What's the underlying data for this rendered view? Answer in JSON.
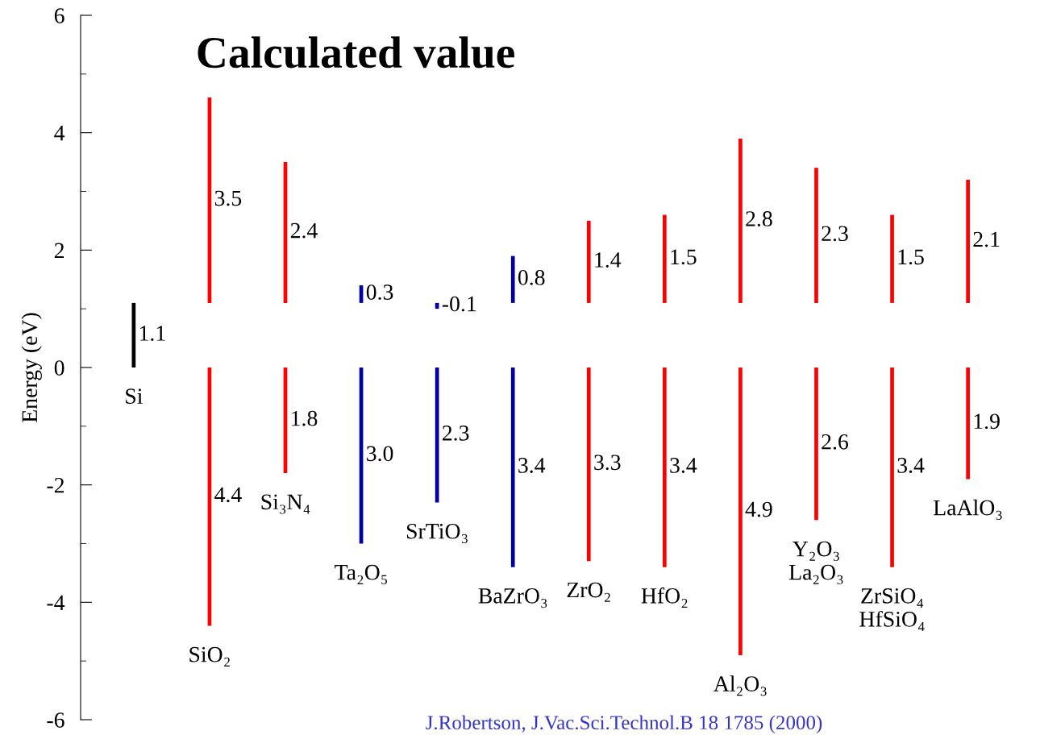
{
  "chart_data": {
    "type": "bar",
    "title": "Calculated value",
    "ylabel": "Energy (eV)",
    "categories": [
      "Si",
      "SiO₂",
      "Si₃N₄",
      "Ta₂O₅",
      "SrTiO₃",
      "BaZrO₃",
      "ZrO₂",
      "HfO₂",
      "Al₂O₃",
      "Y₂O₃\nLa₂O₃",
      "ZrSiO₄\nHfSiO₄",
      "LaAlO₃"
    ],
    "series": [
      {
        "base": [
          0,
          null,
          null,
          null,
          null,
          null,
          null,
          null,
          null,
          null,
          null,
          null
        ],
        "values": [
          1.1,
          null,
          null,
          null,
          null,
          null,
          null,
          null,
          null,
          null,
          null,
          null
        ],
        "colors": [
          "#000000",
          null,
          null,
          null,
          null,
          null,
          null,
          null,
          null,
          null,
          null,
          null
        ],
        "value_labels": [
          "1.1",
          null,
          null,
          null,
          null,
          null,
          null,
          null,
          null,
          null,
          null,
          null
        ]
      },
      {
        "base": [
          null,
          1.1,
          1.1,
          1.1,
          1.1,
          1.1,
          1.1,
          1.1,
          1.1,
          1.1,
          1.1,
          1.1
        ],
        "values": [
          null,
          3.5,
          2.4,
          0.3,
          -0.1,
          0.8,
          1.4,
          1.5,
          2.8,
          2.3,
          1.5,
          2.1
        ],
        "colors": [
          null,
          "#ff0000",
          "#ff0000",
          "#0000a0",
          "#0000a0",
          "#0000a0",
          "#ff0000",
          "#ff0000",
          "#ff0000",
          "#ff0000",
          "#ff0000",
          "#ff0000"
        ],
        "value_labels": [
          null,
          "3.5",
          "2.4",
          "0.3",
          "-0.1",
          "0.8",
          "1.4",
          "1.5",
          "2.8",
          "2.3",
          "1.5",
          "2.1"
        ]
      },
      {
        "base": [
          null,
          0,
          0,
          0,
          0,
          0,
          0,
          0,
          0,
          0,
          0,
          0
        ],
        "values": [
          null,
          -4.4,
          -1.8,
          -3.0,
          -2.3,
          -3.4,
          -3.3,
          -3.4,
          -4.9,
          -2.6,
          -3.4,
          -1.9
        ],
        "colors": [
          null,
          "#ff0000",
          "#ff0000",
          "#0000a0",
          "#0000a0",
          "#0000a0",
          "#ff0000",
          "#ff0000",
          "#ff0000",
          "#ff0000",
          "#ff0000",
          "#ff0000"
        ],
        "value_labels": [
          null,
          "4.4",
          "1.8",
          "3.0",
          "2.3",
          "3.4",
          "3.3",
          "3.4",
          "4.9",
          "2.6",
          "3.4",
          "1.9"
        ]
      }
    ],
    "ylim": [
      -6,
      6
    ],
    "yticks": [
      -6,
      {
        "value": -5,
        "label": null
      },
      -4,
      {
        "value": -3,
        "label": null
      },
      -2,
      {
        "value": -1,
        "label": null
      },
      0,
      {
        "value": 1,
        "label": null
      },
      2,
      {
        "value": 3,
        "label": null
      },
      4,
      {
        "value": 5,
        "label": null
      },
      6
    ],
    "grid": false,
    "legend": false,
    "annotations": [
      "J.Robertson, J.Vac.Sci.Technol.B 18 1785 (2000)"
    ]
  }
}
